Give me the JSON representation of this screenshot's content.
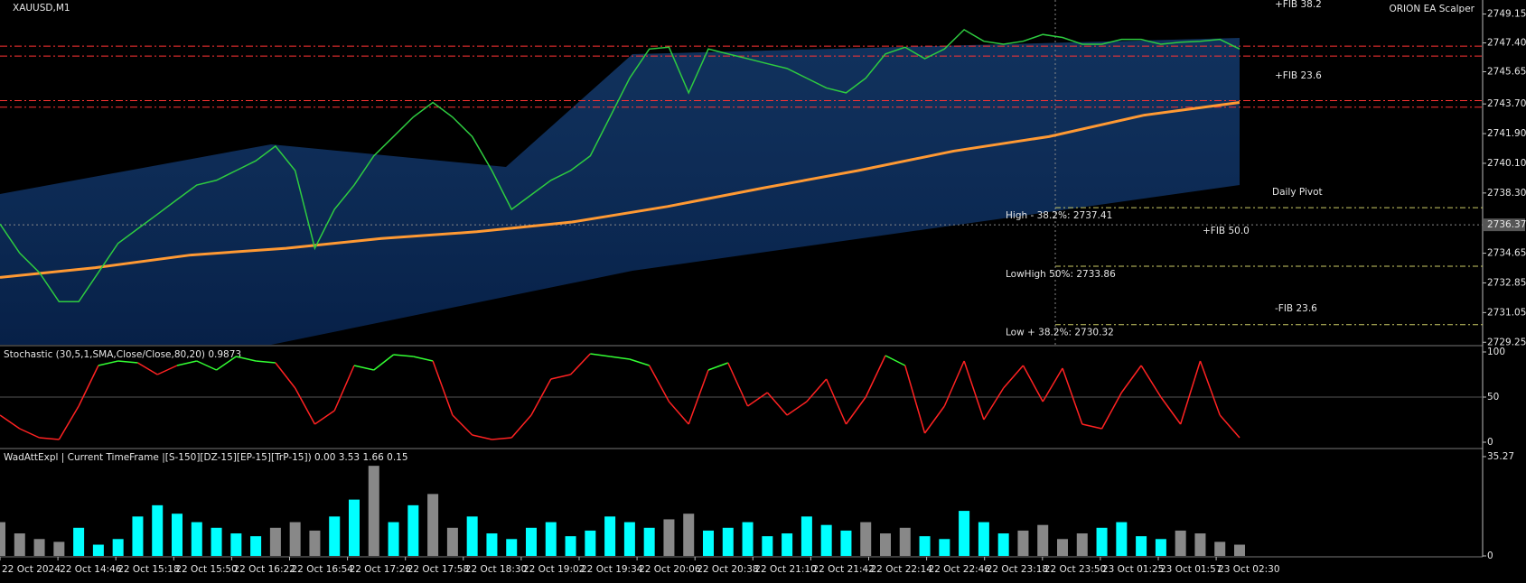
{
  "main": {
    "title": "XAUUSD,M1",
    "ea_label": "ORION EA Scalper",
    "ylim": [
      2729.1,
      2750.0
    ],
    "yticks": [
      2749.15,
      {
        "value": 2747.4,
        "label": "2747.40"
      },
      2745.65,
      {
        "value": 2743.7,
        "label": "2743.70"
      },
      {
        "value": 2741.9,
        "label": "2741.90"
      },
      {
        "value": 2740.1,
        "label": "2740.10"
      },
      {
        "value": 2738.3,
        "label": "2738.30"
      },
      2734.65,
      2732.85,
      2731.05,
      2729.25
    ],
    "crosshair": 2736.37,
    "close_color": "#2ecc40",
    "ma_color": "#ff9933",
    "close": [
      2736.42,
      2734.66,
      2733.48,
      2731.71,
      2731.71,
      2733.48,
      2735.25,
      2736.13,
      2737.01,
      2737.9,
      2738.78,
      2739.07,
      2739.66,
      2740.25,
      2741.14,
      2739.66,
      2734.95,
      2737.31,
      2738.78,
      2740.55,
      2741.72,
      2742.9,
      2743.79,
      2742.9,
      2741.72,
      2739.66,
      2737.31,
      2738.19,
      2739.07,
      2739.66,
      2740.55,
      2742.9,
      2745.26,
      2747.03,
      2747.14,
      2744.37,
      2747.03,
      2746.73,
      2746.44,
      2746.14,
      2745.85,
      2745.26,
      2744.67,
      2744.37,
      2745.26,
      2746.73,
      2747.14,
      2746.44,
      2747.03,
      2748.2,
      2747.5,
      2747.32,
      2747.5,
      2747.91,
      2747.73,
      2747.32,
      2747.32,
      2747.61,
      2747.61,
      2747.32,
      2747.44,
      2747.5,
      2747.61,
      2747.03
    ],
    "ma": [
      2733.18,
      2733.77,
      2734.54,
      2734.95,
      2735.54,
      2735.95,
      2736.54,
      2737.48,
      2738.6,
      2739.66,
      2740.84,
      2741.72,
      2743.02,
      2743.79
    ],
    "levels_color": "#ff3333",
    "levels": [
      2747.2,
      2746.6,
      2743.9,
      2743.5
    ],
    "fib_color": "#cccc66",
    "fib": [
      {
        "label": "High - 38.2%: 2737.41",
        "value": 2737.41
      },
      {
        "label": "LowHigh 50%: 2733.86",
        "value": 2733.86
      },
      {
        "label": "Low + 38.2%: 2730.32",
        "value": 2730.32
      }
    ],
    "annotations": [
      {
        "text": "+FIB 38.2",
        "color": "#aaaaaa"
      },
      {
        "text": "+FIB 23.6",
        "color": "#aaaaaa"
      },
      {
        "text": "Daily Pivot",
        "color": "#ff2222"
      },
      {
        "text": "+FIB 50.0",
        "color": "#555555"
      },
      {
        "text": "-FIB 23.6",
        "color": "#aaaaaa"
      }
    ]
  },
  "stochastic": {
    "title": "Stochastic (30,5,1,SMA,Close/Close,80,20) 0.9873",
    "ylim": [
      -6,
      104
    ],
    "yticks": [
      0,
      50,
      100
    ],
    "overbought": 80,
    "color": "#ff2222",
    "high_color": "#33ff33",
    "values": [
      30,
      15,
      5,
      3,
      40,
      85,
      90,
      88,
      75,
      85,
      90,
      80,
      95,
      90,
      88,
      60,
      20,
      35,
      85,
      80,
      97,
      95,
      90,
      30,
      8,
      3,
      5,
      30,
      70,
      75,
      98,
      95,
      92,
      85,
      45,
      20,
      80,
      88,
      40,
      55,
      30,
      45,
      70,
      20,
      50,
      96,
      85,
      10,
      40,
      90,
      25,
      60,
      85,
      45,
      82,
      20,
      15,
      55,
      85,
      50,
      20,
      90,
      30,
      5
    ]
  },
  "wad": {
    "title": "WadAttExpl | Current TimeFrame |[S-150][DZ-15][EP-15][TrP-15]) 0.00 3.53 1.66 0.15",
    "ylim": [
      0,
      37.5
    ],
    "yticks": [
      0,
      35.27
    ],
    "values": [
      12,
      8,
      6,
      5,
      10,
      4,
      6,
      14,
      18,
      15,
      12,
      10,
      8,
      7,
      10,
      12,
      9,
      14,
      20,
      32,
      12,
      18,
      22,
      10,
      14,
      8,
      6,
      10,
      12,
      7,
      9,
      14,
      12,
      10,
      13,
      15,
      9,
      10,
      12,
      7,
      8,
      14,
      11,
      9,
      12,
      8,
      10,
      7,
      6,
      16,
      12,
      8,
      9,
      11,
      6,
      8,
      10,
      12,
      7,
      6,
      9,
      8,
      5,
      4
    ],
    "colors": [
      "#888",
      "#888",
      "#888",
      "#888",
      "#0ff",
      "#0ff",
      "#0ff",
      "#0ff",
      "#0ff",
      "#0ff",
      "#0ff",
      "#0ff",
      "#0ff",
      "#0ff",
      "#888",
      "#888",
      "#888",
      "#0ff",
      "#0ff",
      "#888",
      "#0ff",
      "#0ff",
      "#888",
      "#888",
      "#0ff",
      "#0ff",
      "#0ff",
      "#0ff",
      "#0ff",
      "#0ff",
      "#0ff",
      "#0ff",
      "#0ff",
      "#0ff",
      "#888",
      "#888",
      "#0ff",
      "#0ff",
      "#0ff",
      "#0ff",
      "#0ff",
      "#0ff",
      "#0ff",
      "#0ff",
      "#888",
      "#888",
      "#888",
      "#0ff",
      "#0ff",
      "#0ff",
      "#0ff",
      "#0ff",
      "#888",
      "#888",
      "#888",
      "#888",
      "#0ff",
      "#0ff",
      "#0ff",
      "#0ff",
      "#888",
      "#888",
      "#888",
      "#888"
    ]
  },
  "time_axis": [
    "22 Oct 2024",
    "22 Oct 14:46",
    "22 Oct 15:18",
    "22 Oct 15:50",
    "22 Oct 16:22",
    "22 Oct 16:54",
    "22 Oct 17:26",
    "22 Oct 17:58",
    "22 Oct 18:30",
    "22 Oct 19:02",
    "22 Oct 19:34",
    "22 Oct 20:06",
    "22 Oct 20:38",
    "22 Oct 21:10",
    "22 Oct 21:42",
    "22 Oct 22:14",
    "22 Oct 22:46",
    "22 Oct 23:18",
    "22 Oct 23:50",
    "23 Oct 01:25",
    "23 Oct 01:57",
    "23 Oct 02:30"
  ]
}
